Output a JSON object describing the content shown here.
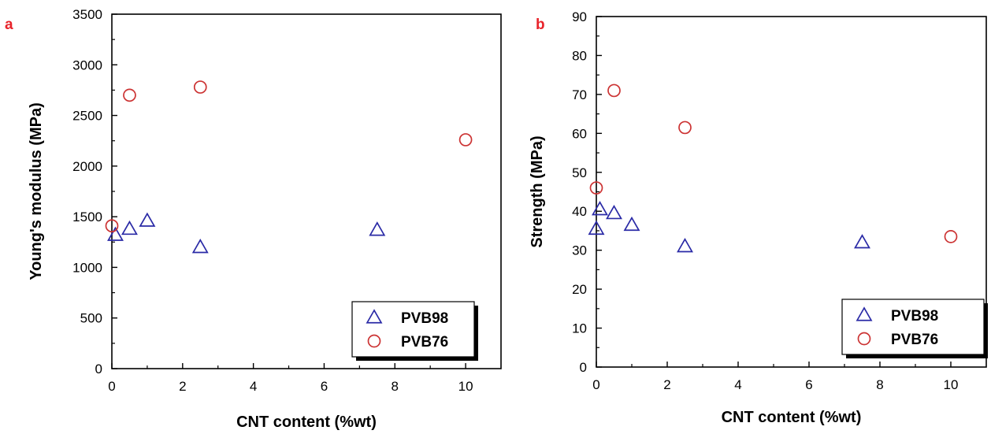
{
  "chart_data": [
    {
      "type": "scatter",
      "panel_label": "a",
      "xlabel": "CNT content (%wt)",
      "ylabel": "Young's modulus (MPa)",
      "xlim": [
        0,
        11
      ],
      "ylim": [
        0,
        3500
      ],
      "xticks": [
        "0",
        "2",
        "4",
        "6",
        "8",
        "10"
      ],
      "yticks": [
        "0",
        "500",
        "1000",
        "1500",
        "2000",
        "2500",
        "3000",
        "3500"
      ],
      "legend_position": "bottom-right",
      "series": [
        {
          "name": "PVB98",
          "marker": "triangle",
          "color": "#2a2aa6",
          "points": [
            {
              "x": 0.1,
              "y": 1320
            },
            {
              "x": 0.5,
              "y": 1380
            },
            {
              "x": 1.0,
              "y": 1460
            },
            {
              "x": 2.5,
              "y": 1200
            },
            {
              "x": 7.5,
              "y": 1370
            }
          ]
        },
        {
          "name": "PVB76",
          "marker": "circle",
          "color": "#cc3333",
          "points": [
            {
              "x": 0.0,
              "y": 1410
            },
            {
              "x": 0.5,
              "y": 2700
            },
            {
              "x": 2.5,
              "y": 2780
            },
            {
              "x": 10.0,
              "y": 2260
            }
          ]
        }
      ]
    },
    {
      "type": "scatter",
      "panel_label": "b",
      "xlabel": "CNT content (%wt)",
      "ylabel": "Strength (MPa)",
      "xlim": [
        0,
        11
      ],
      "ylim": [
        0,
        90
      ],
      "xticks": [
        "0",
        "2",
        "4",
        "6",
        "8",
        "10"
      ],
      "yticks": [
        "0",
        "10",
        "20",
        "30",
        "40",
        "50",
        "60",
        "70",
        "80",
        "90"
      ],
      "legend_position": "bottom-right",
      "series": [
        {
          "name": "PVB98",
          "marker": "triangle",
          "color": "#2a2aa6",
          "points": [
            {
              "x": 0.0,
              "y": 35.5
            },
            {
              "x": 0.1,
              "y": 40.5
            },
            {
              "x": 0.5,
              "y": 39.5
            },
            {
              "x": 1.0,
              "y": 36.5
            },
            {
              "x": 2.5,
              "y": 31.0
            },
            {
              "x": 7.5,
              "y": 32.0
            }
          ]
        },
        {
          "name": "PVB76",
          "marker": "circle",
          "color": "#cc3333",
          "points": [
            {
              "x": 0.0,
              "y": 46.0
            },
            {
              "x": 0.5,
              "y": 71.0
            },
            {
              "x": 2.5,
              "y": 61.5
            },
            {
              "x": 10.0,
              "y": 33.5
            }
          ]
        }
      ]
    }
  ],
  "colors": {
    "panel_letter": "#e8232a",
    "axis": "#000000",
    "legend_shadow": "#000000"
  }
}
